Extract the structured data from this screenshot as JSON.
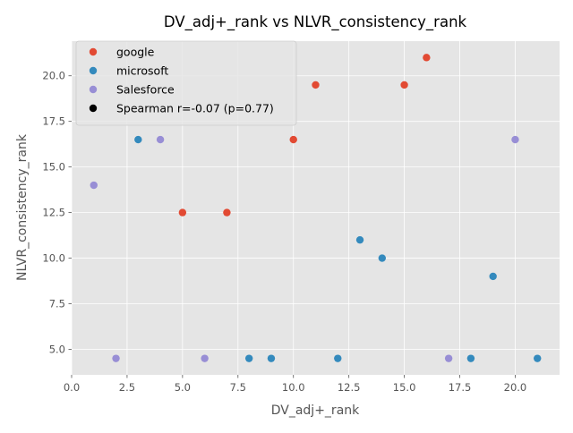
{
  "chart_data": {
    "type": "scatter",
    "title": "DV_adj+_rank vs NLVR_consistency_rank",
    "xlabel": "DV_adj+_rank",
    "ylabel": "NLVR_consistency_rank",
    "xlim": [
      0,
      22
    ],
    "ylim": [
      3.6,
      21.9
    ],
    "xticks": [
      0.0,
      2.5,
      5.0,
      7.5,
      10.0,
      12.5,
      15.0,
      17.5,
      20.0
    ],
    "xtick_labels": [
      "0.0",
      "2.5",
      "5.0",
      "7.5",
      "10.0",
      "12.5",
      "15.0",
      "17.5",
      "20.0"
    ],
    "yticks": [
      5.0,
      7.5,
      10.0,
      12.5,
      15.0,
      17.5,
      20.0
    ],
    "ytick_labels": [
      "5.0",
      "7.5",
      "10.0",
      "12.5",
      "15.0",
      "17.5",
      "20.0"
    ],
    "grid": true,
    "legend_position": "top-left",
    "style": "ggplot",
    "series": [
      {
        "name": "google",
        "color": "#E24A33",
        "points": [
          [
            5,
            12.5
          ],
          [
            7,
            12.5
          ],
          [
            10,
            16.5
          ],
          [
            11,
            19.5
          ],
          [
            15,
            19.5
          ],
          [
            16,
            21
          ]
        ]
      },
      {
        "name": "microsoft",
        "color": "#348ABD",
        "points": [
          [
            3,
            16.5
          ],
          [
            8,
            4.5
          ],
          [
            9,
            4.5
          ],
          [
            12,
            4.5
          ],
          [
            13,
            11
          ],
          [
            14,
            10
          ],
          [
            18,
            4.5
          ],
          [
            19,
            9
          ],
          [
            21,
            4.5
          ]
        ]
      },
      {
        "name": "Salesforce",
        "color": "#988ED5",
        "points": [
          [
            1,
            14
          ],
          [
            2,
            4.5
          ],
          [
            4,
            16.5
          ],
          [
            6,
            4.5
          ],
          [
            17,
            4.5
          ],
          [
            20,
            16.5
          ]
        ]
      }
    ],
    "legend_extra": {
      "label": "Spearman r=-0.07 (p=0.77)",
      "color": "#000000"
    }
  }
}
